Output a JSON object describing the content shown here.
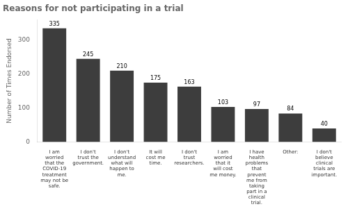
{
  "chart_data": {
    "type": "bar",
    "title": "Reasons for not participating in a trial",
    "ylabel": "Number of Times Endorsed",
    "categories": [
      "I am\nworried\nthat the\nCOVID-19\ntreatment\nmay not be\nsafe.",
      "I don't\ntrust the\ngovernment.",
      "I don't\nunderstand\nwhat will\nhappen to\nme.",
      "It will\ncost me\ntime.",
      "I don't\ntrust\nresearchers.",
      "I am\nworried\nthat it\nwill cost\nme money.",
      "I have\nhealth\nproblems\nthat\nprevent\nme from\ntaking\npart in a\nclinical\ntrial.",
      "Other:",
      "I don't\nbelieve\nclinical\ntrials are\nimportant."
    ],
    "values": [
      335,
      245,
      210,
      175,
      163,
      103,
      97,
      84,
      40
    ],
    "color": "#3d3d3d",
    "ylim": [
      0,
      360
    ],
    "yticks": [
      0,
      100,
      200,
      300
    ],
    "grid": false,
    "data_labels": true
  }
}
